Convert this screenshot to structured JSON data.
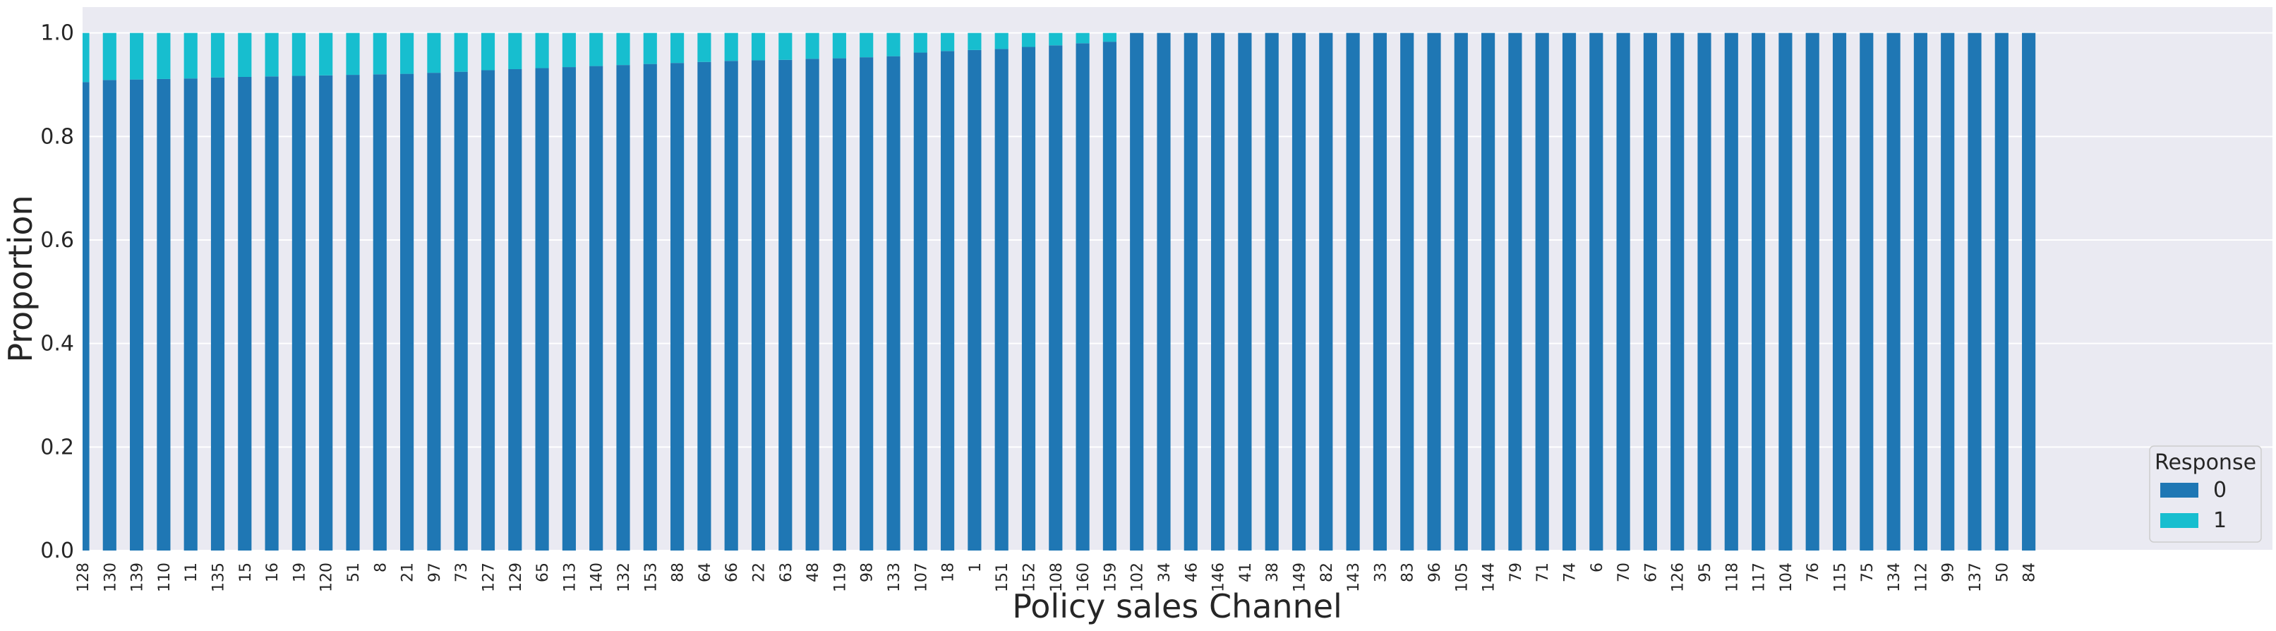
{
  "chart_data": {
    "type": "bar",
    "stacked": true,
    "xlabel": "Policy sales Channel",
    "ylabel": "Proportion",
    "ylim": [
      0,
      1.05
    ],
    "yticks": [
      "0.0",
      "0.2",
      "0.4",
      "0.6",
      "0.8",
      "1.0"
    ],
    "grid": true,
    "legend": {
      "title": "Response",
      "placement": "bottom-right"
    },
    "categories": [
      "128",
      "130",
      "139",
      "110",
      "11",
      "135",
      "15",
      "16",
      "19",
      "120",
      "51",
      "8",
      "21",
      "97",
      "73",
      "127",
      "129",
      "65",
      "113",
      "140",
      "132",
      "153",
      "88",
      "64",
      "66",
      "22",
      "63",
      "48",
      "119",
      "98",
      "133",
      "107",
      "18",
      "1",
      "151",
      "152",
      "108",
      "160",
      "159",
      "102",
      "34",
      "46",
      "146",
      "41",
      "38",
      "149",
      "82",
      "143",
      "33",
      "83",
      "96",
      "105",
      "144",
      "79",
      "71",
      "74",
      "6",
      "70",
      "67",
      "126",
      "95",
      "118",
      "117",
      "104",
      "76",
      "115",
      "75",
      "134",
      "112",
      "99",
      "137",
      "50",
      "84"
    ],
    "series": [
      {
        "name": "0",
        "color": "#1f77b4",
        "values": [
          0.905,
          0.909,
          0.91,
          0.911,
          0.912,
          0.914,
          0.915,
          0.916,
          0.917,
          0.918,
          0.919,
          0.92,
          0.921,
          0.923,
          0.925,
          0.928,
          0.93,
          0.932,
          0.934,
          0.936,
          0.938,
          0.94,
          0.942,
          0.944,
          0.946,
          0.947,
          0.948,
          0.95,
          0.951,
          0.953,
          0.955,
          0.962,
          0.965,
          0.967,
          0.969,
          0.973,
          0.976,
          0.98,
          0.983,
          1,
          1,
          1,
          1,
          1,
          1,
          1,
          1,
          1,
          1,
          1,
          1,
          1,
          1,
          1,
          1,
          1,
          1,
          1,
          1,
          1,
          1,
          1,
          1,
          1,
          1,
          1,
          1,
          1,
          1,
          1,
          1,
          1,
          1
        ]
      },
      {
        "name": "1",
        "color": "#17becf",
        "values": [
          0.095,
          0.091,
          0.09,
          0.089,
          0.088,
          0.086,
          0.085,
          0.084,
          0.083,
          0.082,
          0.081,
          0.08,
          0.079,
          0.077,
          0.075,
          0.072,
          0.07,
          0.068,
          0.066,
          0.064,
          0.062,
          0.06,
          0.058,
          0.056,
          0.054,
          0.053,
          0.052,
          0.05,
          0.049,
          0.047,
          0.045,
          0.038,
          0.035,
          0.033,
          0.031,
          0.027,
          0.024,
          0.02,
          0.017,
          0,
          0,
          0,
          0,
          0,
          0,
          0,
          0,
          0,
          0,
          0,
          0,
          0,
          0,
          0,
          0,
          0,
          0,
          0,
          0,
          0,
          0,
          0,
          0,
          0,
          0,
          0,
          0,
          0,
          0,
          0,
          0,
          0,
          0
        ]
      }
    ]
  }
}
